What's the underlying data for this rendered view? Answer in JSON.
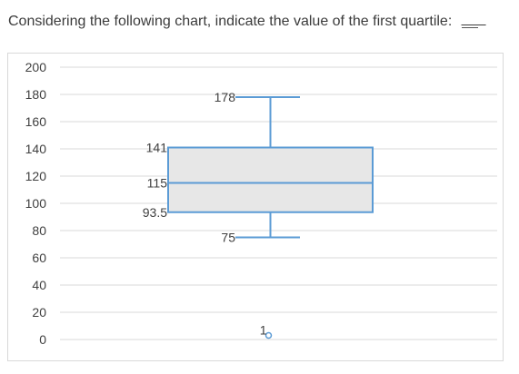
{
  "question": {
    "text": "Considering the following chart, indicate the value of the first quartile:",
    "blank": "___"
  },
  "chart_data": {
    "type": "box",
    "yticks": [
      "0",
      "20",
      "40",
      "60",
      "80",
      "100",
      "120",
      "140",
      "160",
      "180",
      "200"
    ],
    "ylim": [
      0,
      200
    ],
    "grid": true,
    "box": {
      "min": 75,
      "q1": 93.5,
      "median": 115,
      "q3": 141,
      "max": 178,
      "outlier": 1
    },
    "labels": {
      "max": "178",
      "q3": "141",
      "median": "115",
      "q1": "93.5",
      "min": "75",
      "outlier": "1"
    },
    "colors": {
      "box_stroke": "#5b9bd5",
      "box_fill": "#e7e7e7",
      "grid": "#d9d9d9",
      "axis_text": "#404040",
      "label_text": "#404040"
    }
  }
}
